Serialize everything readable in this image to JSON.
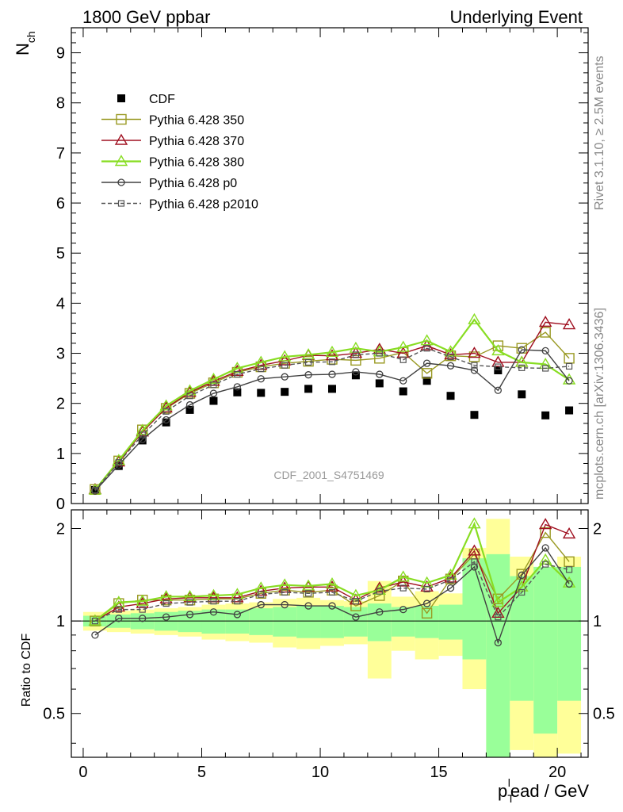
{
  "header": {
    "left_title": "1800 GeV ppbar",
    "right_title": "Underlying Event"
  },
  "side_text": {
    "rivet": "Rivet 3.1.10, ≥ 2.5M events",
    "mcplots": "mcplots.cern.ch [arXiv:1306.3436]"
  },
  "chart_data": [
    {
      "type": "line",
      "panel": "main",
      "ylabel_main": "N",
      "ylabel_sub": "ch",
      "watermark": "CDF_2001_S4751469",
      "ylim": [
        0,
        9.5
      ],
      "xlim": [
        -0.5,
        21.3
      ],
      "yticks": [
        "0",
        "1",
        "2",
        "3",
        "4",
        "5",
        "6",
        "7",
        "8",
        "9"
      ],
      "legend_position": "top-left",
      "series": [
        {
          "name": "CDF",
          "color": "#000000",
          "marker": "filled-square",
          "x": [
            0.5,
            1.5,
            2.5,
            3.5,
            4.5,
            5.5,
            6.5,
            7.5,
            8.5,
            9.5,
            10.5,
            11.5,
            12.5,
            13.5,
            14.5,
            15.5,
            16.5,
            17.5,
            18.5,
            19.5,
            20.5
          ],
          "y": [
            0.27,
            0.75,
            1.26,
            1.62,
            1.87,
            2.05,
            2.22,
            2.21,
            2.23,
            2.29,
            2.29,
            2.56,
            2.4,
            2.24,
            2.45,
            2.15,
            1.77,
            2.66,
            2.18,
            1.76,
            1.86
          ]
        },
        {
          "name": "Pythia 6.428 350",
          "color": "#999922",
          "marker": "open-square",
          "x": [
            0.5,
            1.5,
            2.5,
            3.5,
            4.5,
            5.5,
            6.5,
            7.5,
            8.5,
            9.5,
            10.5,
            11.5,
            12.5,
            13.5,
            14.5,
            15.5,
            16.5,
            17.5,
            18.5,
            19.5,
            20.5
          ],
          "y": [
            0.28,
            0.85,
            1.47,
            1.9,
            2.2,
            2.41,
            2.62,
            2.73,
            2.8,
            2.84,
            2.88,
            2.86,
            2.9,
            3.02,
            2.6,
            2.95,
            2.93,
            3.15,
            3.1,
            3.42,
            2.9
          ]
        },
        {
          "name": "Pythia 6.428 370",
          "color": "#a01020",
          "marker": "open-triangle",
          "x": [
            0.5,
            1.5,
            2.5,
            3.5,
            4.5,
            5.5,
            6.5,
            7.5,
            8.5,
            9.5,
            10.5,
            11.5,
            12.5,
            13.5,
            14.5,
            15.5,
            16.5,
            17.5,
            18.5,
            19.5,
            20.5
          ],
          "y": [
            0.28,
            0.83,
            1.43,
            1.91,
            2.22,
            2.44,
            2.64,
            2.76,
            2.85,
            2.96,
            2.95,
            3.0,
            3.08,
            3.0,
            3.15,
            2.97,
            3.0,
            2.82,
            2.82,
            3.62,
            3.57
          ]
        },
        {
          "name": "Pythia 6.428 380",
          "color": "#88dd22",
          "marker": "open-triangle",
          "x": [
            0.5,
            1.5,
            2.5,
            3.5,
            4.5,
            5.5,
            6.5,
            7.5,
            8.5,
            9.5,
            10.5,
            11.5,
            12.5,
            13.5,
            14.5,
            15.5,
            16.5,
            17.5,
            18.5,
            19.5,
            20.5
          ],
          "y": [
            0.27,
            0.86,
            1.46,
            1.95,
            2.25,
            2.48,
            2.7,
            2.82,
            2.93,
            2.97,
            3.02,
            3.1,
            3.03,
            3.12,
            3.25,
            3.03,
            3.67,
            3.05,
            2.82,
            2.78,
            2.47
          ]
        },
        {
          "name": "Pythia 6.428 p0",
          "color": "#404040",
          "marker": "open-circle",
          "x": [
            0.5,
            1.5,
            2.5,
            3.5,
            4.5,
            5.5,
            6.5,
            7.5,
            8.5,
            9.5,
            10.5,
            11.5,
            12.5,
            13.5,
            14.5,
            15.5,
            16.5,
            17.5,
            18.5,
            19.5,
            20.5
          ],
          "y": [
            0.25,
            0.77,
            1.28,
            1.67,
            1.97,
            2.2,
            2.33,
            2.49,
            2.53,
            2.57,
            2.58,
            2.63,
            2.58,
            2.45,
            2.8,
            2.75,
            2.66,
            2.26,
            3.07,
            3.05,
            2.45
          ]
        },
        {
          "name": "Pythia 6.428 p2010",
          "color": "#555555",
          "marker": "small-square",
          "dashed": true,
          "x": [
            0.5,
            1.5,
            2.5,
            3.5,
            4.5,
            5.5,
            6.5,
            7.5,
            8.5,
            9.5,
            10.5,
            11.5,
            12.5,
            13.5,
            14.5,
            15.5,
            16.5,
            17.5,
            18.5,
            19.5,
            20.5
          ],
          "y": [
            0.27,
            0.82,
            1.37,
            1.84,
            2.15,
            2.37,
            2.58,
            2.69,
            2.76,
            2.82,
            2.83,
            2.97,
            3.0,
            2.87,
            3.1,
            2.93,
            2.76,
            2.73,
            2.71,
            2.7,
            2.74
          ]
        }
      ]
    },
    {
      "type": "line",
      "panel": "ratio",
      "ylabel": "Ratio to CDF",
      "xlabel_p": "p",
      "xlabel_sub": "T",
      "xlabel_sup": "l",
      "xlabel_rest": "ead / GeV",
      "ylim": [
        0.36,
        2.3
      ],
      "log_y": true,
      "xlim": [
        -0.5,
        21.3
      ],
      "yticks": [
        "0.5",
        "1",
        "2"
      ],
      "xticks": [
        "0",
        "5",
        "10",
        "15",
        "20"
      ],
      "band_edges": [
        0,
        1,
        2,
        3,
        4,
        5,
        6,
        7,
        8,
        9,
        10,
        11,
        12,
        13,
        14,
        15,
        16,
        17,
        18,
        19,
        20,
        21
      ],
      "band_green_lo": [
        0.96,
        0.95,
        0.94,
        0.93,
        0.92,
        0.91,
        0.91,
        0.9,
        0.89,
        0.88,
        0.88,
        0.89,
        0.86,
        0.89,
        0.88,
        0.87,
        0.75,
        0.35,
        0.55,
        0.43,
        0.55
      ],
      "band_green_hi": [
        1.04,
        1.05,
        1.06,
        1.07,
        1.08,
        1.09,
        1.09,
        1.1,
        1.11,
        1.12,
        1.12,
        1.11,
        1.14,
        1.11,
        1.12,
        1.13,
        1.6,
        1.65,
        1.4,
        1.5,
        1.5
      ],
      "band_yellow_lo": [
        0.93,
        0.92,
        0.91,
        0.9,
        0.89,
        0.87,
        0.86,
        0.85,
        0.82,
        0.81,
        0.83,
        0.84,
        0.65,
        0.8,
        0.75,
        0.77,
        0.6,
        0.35,
        0.38,
        0.36,
        0.37
      ],
      "band_yellow_hi": [
        1.07,
        1.08,
        1.09,
        1.1,
        1.11,
        1.13,
        1.14,
        1.15,
        1.18,
        1.19,
        1.17,
        1.16,
        1.35,
        1.2,
        1.25,
        1.23,
        1.73,
        2.15,
        1.62,
        1.5,
        1.62
      ],
      "series": [
        {
          "name": "Pythia 6.428 350",
          "color": "#999922",
          "y": [
            1.0,
            1.14,
            1.17,
            1.17,
            1.17,
            1.18,
            1.18,
            1.23,
            1.26,
            1.24,
            1.26,
            1.12,
            1.21,
            1.35,
            1.06,
            1.37,
            1.65,
            1.18,
            1.42,
            1.94,
            1.56
          ]
        },
        {
          "name": "Pythia 6.428 370",
          "color": "#a01020",
          "y": [
            1.0,
            1.11,
            1.14,
            1.18,
            1.19,
            1.19,
            1.19,
            1.25,
            1.28,
            1.29,
            1.29,
            1.17,
            1.28,
            1.34,
            1.29,
            1.38,
            1.69,
            1.06,
            1.29,
            2.06,
            1.92
          ]
        },
        {
          "name": "Pythia 6.428 380",
          "color": "#88dd22",
          "y": [
            1.0,
            1.15,
            1.16,
            1.2,
            1.2,
            1.21,
            1.22,
            1.28,
            1.31,
            1.3,
            1.32,
            1.21,
            1.26,
            1.39,
            1.33,
            1.41,
            2.07,
            1.15,
            1.29,
            1.58,
            1.33
          ]
        },
        {
          "name": "Pythia 6.428 p0",
          "color": "#404040",
          "y": [
            0.9,
            1.02,
            1.02,
            1.03,
            1.05,
            1.07,
            1.05,
            1.13,
            1.13,
            1.12,
            1.12,
            1.03,
            1.07,
            1.09,
            1.14,
            1.28,
            1.5,
            0.85,
            1.41,
            1.73,
            1.32
          ]
        },
        {
          "name": "Pythia 6.428 p2010",
          "color": "#555555",
          "y": [
            1.0,
            1.09,
            1.09,
            1.14,
            1.15,
            1.16,
            1.16,
            1.22,
            1.24,
            1.23,
            1.24,
            1.16,
            1.25,
            1.28,
            1.27,
            1.36,
            1.56,
            1.03,
            1.24,
            1.53,
            1.47
          ]
        }
      ]
    }
  ]
}
